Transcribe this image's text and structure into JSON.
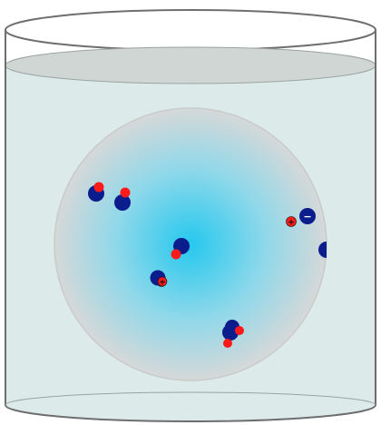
{
  "colors": {
    "background": "#ffffff",
    "beaker_outline": "#6e6e6e",
    "water": "#dcebea",
    "water_surface": "#cfd6d4",
    "sphere_center": "#25c8ee",
    "sphere_edge": "#d6d8d8",
    "ion_dark": "#0b1d8c",
    "ion_light": "#ff1a1a"
  },
  "scene": {
    "container": "beaker",
    "liquid": "water",
    "solute_region": "sphere"
  },
  "particles": [
    {
      "type": "molecule",
      "orientation": "light-up-right"
    },
    {
      "type": "molecule",
      "orientation": "light-up-right"
    },
    {
      "type": "molecule",
      "orientation": "light-down-left"
    },
    {
      "type": "molecule",
      "orientation": "light-down-left"
    },
    {
      "type": "molecule",
      "orientation": "light-down-right"
    },
    {
      "type": "cation",
      "charge_symbol": "+"
    },
    {
      "type": "cation",
      "charge_symbol": "+"
    },
    {
      "type": "anion",
      "charge_symbol": "−"
    },
    {
      "type": "anion",
      "charge_symbol": ""
    }
  ]
}
